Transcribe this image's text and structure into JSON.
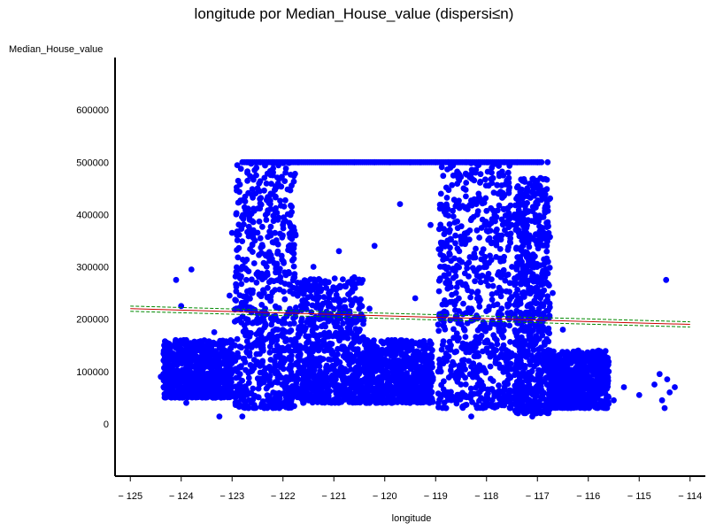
{
  "chart_data": {
    "type": "scatter",
    "title": "longitude por Median_House_value (dispersi≤n)",
    "xlabel": "longitude",
    "ylabel": "Median_House_value",
    "xlim": [
      -125.3,
      -113.7
    ],
    "ylim": [
      -100000,
      700000
    ],
    "xticks": [
      -125,
      -124,
      -123,
      -122,
      -121,
      -120,
      -119,
      -118,
      -117,
      -116,
      -115,
      -114
    ],
    "xtick_labels": [
      "− 125",
      "− 124",
      "− 123",
      "− 122",
      "− 121",
      "− 120",
      "− 119",
      "− 118",
      "− 117",
      "− 116",
      "− 115",
      "− 114"
    ],
    "yticks": [
      0,
      100000,
      200000,
      300000,
      400000,
      500000,
      600000
    ],
    "ytick_labels": [
      "0",
      "100000",
      "200000",
      "300000",
      "400000",
      "500000",
      "600000"
    ],
    "grid": false,
    "point_color": "#0000ff",
    "series": [
      {
        "type": "scatter",
        "points": [
          [
            -124.35,
            95000
          ],
          [
            -124.3,
            75000
          ],
          [
            -124.25,
            110000
          ],
          [
            -124.2,
            60000
          ],
          [
            -124.15,
            130000
          ],
          [
            -124.1,
            85000
          ],
          [
            -124.05,
            150000
          ],
          [
            -124.0,
            100000
          ],
          [
            -123.95,
            70000
          ],
          [
            -123.9,
            160000
          ],
          [
            -123.85,
            120000
          ],
          [
            -123.8,
            90000
          ],
          [
            -123.7,
            110000
          ],
          [
            -123.6,
            65000
          ],
          [
            -123.5,
            140000
          ],
          [
            -123.4,
            100000
          ],
          [
            -123.35,
            175000
          ],
          [
            -123.3,
            80000
          ],
          [
            -123.25,
            14000
          ],
          [
            -123.2,
            130000
          ],
          [
            -123.15,
            60000
          ],
          [
            -123.1,
            115000
          ],
          [
            -123.05,
            245000
          ],
          [
            -123.0,
            150000
          ],
          [
            -123.0,
            365000
          ],
          [
            -124.0,
            225000
          ],
          [
            -124.1,
            275000
          ],
          [
            -123.8,
            295000
          ],
          [
            -124.4,
            90000
          ],
          [
            -123.9,
            40000
          ],
          [
            -122.9,
            100000
          ],
          [
            -122.85,
            200000
          ],
          [
            -122.8,
            300000
          ],
          [
            -122.75,
            400000
          ],
          [
            -122.7,
            500000
          ],
          [
            -122.65,
            150000
          ],
          [
            -122.6,
            250000
          ],
          [
            -122.55,
            350000
          ],
          [
            -122.5,
            450000
          ],
          [
            -122.45,
            500000
          ],
          [
            -122.4,
            120000
          ],
          [
            -122.35,
            220000
          ],
          [
            -122.3,
            320000
          ],
          [
            -122.25,
            420000
          ],
          [
            -122.2,
            500000
          ],
          [
            -122.15,
            80000
          ],
          [
            -122.1,
            180000
          ],
          [
            -122.05,
            280000
          ],
          [
            -122.0,
            380000
          ],
          [
            -121.95,
            480000
          ],
          [
            -121.9,
            60000
          ],
          [
            -121.85,
            160000
          ],
          [
            -121.8,
            260000
          ],
          [
            -121.75,
            360000
          ],
          [
            -121.7,
            500000
          ],
          [
            -122.8,
            14000
          ],
          [
            -122.1,
            35000
          ],
          [
            -121.6,
            120000
          ],
          [
            -121.5,
            200000
          ],
          [
            -121.4,
            300000
          ],
          [
            -121.3,
            90000
          ],
          [
            -121.2,
            160000
          ],
          [
            -121.1,
            250000
          ],
          [
            -121.0,
            110000
          ],
          [
            -120.9,
            330000
          ],
          [
            -120.8,
            75000
          ],
          [
            -120.7,
            180000
          ],
          [
            -120.6,
            280000
          ],
          [
            -120.5,
            120000
          ],
          [
            -120.4,
            60000
          ],
          [
            -120.3,
            220000
          ],
          [
            -120.2,
            340000
          ],
          [
            -120.1,
            140000
          ],
          [
            -120.0,
            90000
          ],
          [
            -119.9,
            500000
          ],
          [
            -120.2,
            500000
          ],
          [
            -120.6,
            500000
          ],
          [
            -119.8,
            160000
          ],
          [
            -119.7,
            420000
          ],
          [
            -119.6,
            70000
          ],
          [
            -119.5,
            500000
          ],
          [
            -119.4,
            240000
          ],
          [
            -119.3,
            500000
          ],
          [
            -119.2,
            120000
          ],
          [
            -119.1,
            380000
          ],
          [
            -119.0,
            500000
          ],
          [
            -118.95,
            100000
          ],
          [
            -118.9,
            200000
          ],
          [
            -118.85,
            300000
          ],
          [
            -118.8,
            400000
          ],
          [
            -118.75,
            500000
          ],
          [
            -118.7,
            150000
          ],
          [
            -118.6,
            250000
          ],
          [
            -118.5,
            350000
          ],
          [
            -118.45,
            450000
          ],
          [
            -118.4,
            500000
          ],
          [
            -118.35,
            120000
          ],
          [
            -118.3,
            220000
          ],
          [
            -118.25,
            320000
          ],
          [
            -118.2,
            420000
          ],
          [
            -118.15,
            500000
          ],
          [
            -118.1,
            80000
          ],
          [
            -118.05,
            180000
          ],
          [
            -118.0,
            280000
          ],
          [
            -117.95,
            380000
          ],
          [
            -117.9,
            480000
          ],
          [
            -117.85,
            60000
          ],
          [
            -117.8,
            160000
          ],
          [
            -117.75,
            260000
          ],
          [
            -117.7,
            360000
          ],
          [
            -117.65,
            500000
          ],
          [
            -118.3,
            14000
          ],
          [
            -117.6,
            100000
          ],
          [
            -117.55,
            200000
          ],
          [
            -117.5,
            300000
          ],
          [
            -117.45,
            400000
          ],
          [
            -117.4,
            500000
          ],
          [
            -117.35,
            150000
          ],
          [
            -117.3,
            250000
          ],
          [
            -117.25,
            350000
          ],
          [
            -117.2,
            450000
          ],
          [
            -117.15,
            120000
          ],
          [
            -117.1,
            220000
          ],
          [
            -117.05,
            320000
          ],
          [
            -117.0,
            420000
          ],
          [
            -117.0,
            500000
          ],
          [
            -116.8,
            500000
          ],
          [
            -117.1,
            14000
          ],
          [
            -116.95,
            80000
          ],
          [
            -116.9,
            180000
          ],
          [
            -116.85,
            280000
          ],
          [
            -116.8,
            380000
          ],
          [
            -116.75,
            140000
          ],
          [
            -116.7,
            250000
          ],
          [
            -116.6,
            90000
          ],
          [
            -116.5,
            180000
          ],
          [
            -116.4,
            120000
          ],
          [
            -116.3,
            60000
          ],
          [
            -116.2,
            140000
          ],
          [
            -116.1,
            80000
          ],
          [
            -116.0,
            50000
          ],
          [
            -115.9,
            110000
          ],
          [
            -115.8,
            140000
          ],
          [
            -115.7,
            70000
          ],
          [
            -115.6,
            100000
          ],
          [
            -115.5,
            45000
          ],
          [
            -115.3,
            70000
          ],
          [
            -115.0,
            55000
          ],
          [
            -114.7,
            75000
          ],
          [
            -114.6,
            95000
          ],
          [
            -114.55,
            45000
          ],
          [
            -114.5,
            30000
          ],
          [
            -114.45,
            85000
          ],
          [
            -114.4,
            60000
          ],
          [
            -114.3,
            70000
          ],
          [
            -114.47,
            275000
          ],
          [
            -115.9,
            60000
          ],
          [
            -116.15,
            35000
          ],
          [
            -117.3,
            40000
          ],
          [
            -118.9,
            50000
          ]
        ]
      },
      {
        "type": "line",
        "name": "",
        "color": "#cc0000",
        "points": [
          [
            -125.0,
            220000
          ],
          [
            -114.0,
            190000
          ]
        ]
      },
      {
        "type": "line",
        "name": "",
        "color": "#008800",
        "dashed": true,
        "points": [
          [
            -125.0,
            225000
          ],
          [
            -114.0,
            195000
          ]
        ]
      },
      {
        "type": "line",
        "name": "",
        "color": "#008800",
        "dashed": true,
        "points": [
          [
            -125.0,
            215000
          ],
          [
            -114.0,
            185000
          ]
        ]
      }
    ],
    "dense_bands": [
      {
        "x_from": -122.95,
        "x_to": -121.75,
        "y_from": 30000,
        "y_to": 500000
      },
      {
        "x_from": -118.95,
        "x_to": -117.5,
        "y_from": 30000,
        "y_to": 500000
      },
      {
        "x_from": -117.45,
        "x_to": -116.75,
        "y_from": 20000,
        "y_to": 470000
      },
      {
        "x_from": -120.4,
        "x_to": -119.05,
        "y_from": 40000,
        "y_to": 160000
      },
      {
        "x_from": -121.75,
        "x_to": -120.4,
        "y_from": 40000,
        "y_to": 280000
      },
      {
        "x_from": -124.35,
        "x_to": -123.0,
        "y_from": 50000,
        "y_to": 160000
      },
      {
        "x_from": -116.75,
        "x_to": -115.6,
        "y_from": 30000,
        "y_to": 140000
      }
    ],
    "capped_value_row": {
      "y": 500000,
      "x_from": -122.8,
      "x_to": -116.9
    }
  }
}
